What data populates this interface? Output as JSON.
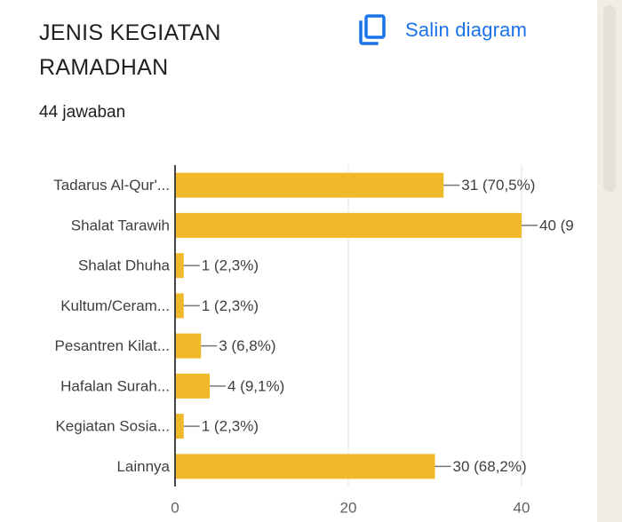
{
  "card": {
    "title": "JENIS KEGIATAN RAMADHAN",
    "responses": "44 jawaban",
    "copy_label": "Salin diagram",
    "copy_icon": "copy-icon"
  },
  "colors": {
    "bar": "#f0b92a",
    "accent": "#1a73e8",
    "grid": "#e3e3e3",
    "axis": "#444444"
  },
  "chart_data": {
    "type": "bar",
    "orientation": "horizontal",
    "categories": [
      "Tadarus Al-Qur'...",
      "Shalat Tarawih",
      "Shalat Dhuha",
      "Kultum/Ceram...",
      "Pesantren Kilat...",
      "Hafalan Surah...",
      "Kegiatan Sosia...",
      "Lainnya"
    ],
    "values": [
      31,
      40,
      1,
      1,
      3,
      4,
      1,
      30
    ],
    "value_labels": [
      "31 (70,5%)",
      "40 (9",
      "1 (2,3%)",
      "1 (2,3%)",
      "3 (6,8%)",
      "4 (9,1%)",
      "1 (2,3%)",
      "30 (68,2%)"
    ],
    "xlim": [
      0,
      40
    ],
    "xticks": [
      0,
      20,
      40
    ],
    "grid": true
  }
}
